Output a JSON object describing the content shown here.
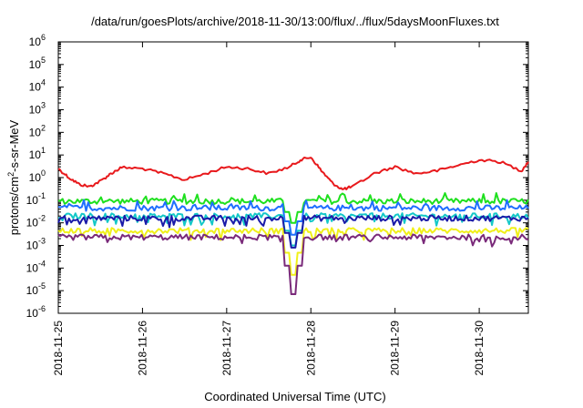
{
  "chart_data": {
    "type": "line",
    "title": "/data/run/goesPlots/archive/2018-11-30/13:00/flux/../flux/5daysMoonFluxes.txt",
    "xlabel": "Coordinated Universal Time (UTC)",
    "ylabel": "protons/cm²-s-sr-MeV",
    "ylabel_parts": {
      "pre": "protons/cm",
      "sup": "2",
      "post": "-s-sr-MeV"
    },
    "yscale": "log",
    "ylim_exp": [
      -6,
      6
    ],
    "y_ticks": [
      {
        "base": "10",
        "exp": "-6"
      },
      {
        "base": "10",
        "exp": "-5"
      },
      {
        "base": "10",
        "exp": "-4"
      },
      {
        "base": "10",
        "exp": "-3"
      },
      {
        "base": "10",
        "exp": "-2"
      },
      {
        "base": "10",
        "exp": "-1"
      },
      {
        "base": "10",
        "exp": "0"
      },
      {
        "base": "10",
        "exp": "1"
      },
      {
        "base": "10",
        "exp": "2"
      },
      {
        "base": "10",
        "exp": "3"
      },
      {
        "base": "10",
        "exp": "4"
      },
      {
        "base": "10",
        "exp": "5"
      },
      {
        "base": "10",
        "exp": "6"
      }
    ],
    "xlim": [
      "2018-11-25T00:00",
      "2018-11-30T14:00"
    ],
    "x_ticks": [
      "2018-11-25",
      "2018-11-26",
      "2018-11-27",
      "2018-11-28",
      "2018-11-29",
      "2018-11-30"
    ],
    "grid": false,
    "legend": "none",
    "series": [
      {
        "color": "#e8191c",
        "x": [
          "2018-11-25T00:00",
          "2018-11-25T03:00",
          "2018-11-25T06:00",
          "2018-11-25T09:00",
          "2018-11-25T12:00",
          "2018-11-25T15:00",
          "2018-11-25T18:00",
          "2018-11-26T00:00",
          "2018-11-26T06:00",
          "2018-11-26T12:00",
          "2018-11-26T18:00",
          "2018-11-27T00:00",
          "2018-11-27T06:00",
          "2018-11-27T12:00",
          "2018-11-27T18:00",
          "2018-11-27T21:00",
          "2018-11-28T00:00",
          "2018-11-28T03:00",
          "2018-11-28T06:00",
          "2018-11-28T09:00",
          "2018-11-28T12:00",
          "2018-11-28T18:00",
          "2018-11-29T00:00",
          "2018-11-29T06:00",
          "2018-11-29T12:00",
          "2018-11-29T18:00",
          "2018-11-30T00:00",
          "2018-11-30T06:00",
          "2018-11-30T12:00",
          "2018-11-30T14:00"
        ],
        "values": [
          2.5,
          1.0,
          0.5,
          0.4,
          0.7,
          1.5,
          2.8,
          2.5,
          1.5,
          0.8,
          1.5,
          3.0,
          2.5,
          1.5,
          3.0,
          6.0,
          8.0,
          2.0,
          0.6,
          0.3,
          0.4,
          1.5,
          3.0,
          1.5,
          2.0,
          3.5,
          6.0,
          5.0,
          2.0,
          5.0
        ]
      },
      {
        "color": "#1fe01f",
        "level": 0.09,
        "dip_min": 0.01
      },
      {
        "color": "#1f6fff",
        "level": 0.045,
        "dip_min": 0.003
      },
      {
        "color": "#14c8c8",
        "level": 0.02,
        "dip_min": 0.001
      },
      {
        "color": "#1a1aa8",
        "level": 0.016,
        "dip_min": 0.0008
      },
      {
        "color": "#f0f01a",
        "level": 0.0045,
        "dip_min": 5e-05
      },
      {
        "color": "#7a2a7a",
        "level": 0.0023,
        "dip_min": 7e-06
      }
    ],
    "dip_time": "2018-11-27T19:00"
  }
}
